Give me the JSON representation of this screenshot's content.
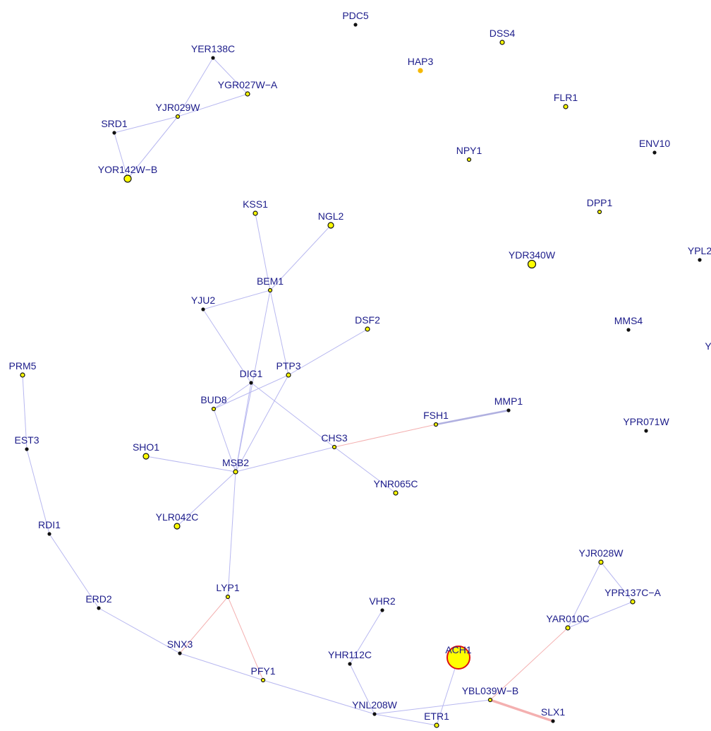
{
  "nodes": [
    {
      "label": "PDC5"
    },
    {
      "label": "DSS4"
    },
    {
      "label": "HAP3"
    },
    {
      "label": "YER138C"
    },
    {
      "label": "YGR027W−A"
    },
    {
      "label": "YJR029W"
    },
    {
      "label": "SRD1"
    },
    {
      "label": "YOR142W−B"
    },
    {
      "label": "FLR1"
    },
    {
      "label": "NPY1"
    },
    {
      "label": "ENV10"
    },
    {
      "label": "DPP1"
    },
    {
      "label": "KSS1"
    },
    {
      "label": "NGL2"
    },
    {
      "label": "YDR340W"
    },
    {
      "label": "YPL2"
    },
    {
      "label": "BEM1"
    },
    {
      "label": "YJU2"
    },
    {
      "label": "MMS4"
    },
    {
      "label": "DSF2"
    },
    {
      "label": "Y"
    },
    {
      "label": "PRM5"
    },
    {
      "label": "DIG1"
    },
    {
      "label": "PTP3"
    },
    {
      "label": "BUD8"
    },
    {
      "label": "MMP1"
    },
    {
      "label": "FSH1"
    },
    {
      "label": "YPR071W"
    },
    {
      "label": "CHS3"
    },
    {
      "label": "EST3"
    },
    {
      "label": "SHO1"
    },
    {
      "label": "MSB2"
    },
    {
      "label": "YNR065C"
    },
    {
      "label": "YLR042C"
    },
    {
      "label": "RDI1"
    },
    {
      "label": "YJR028W"
    },
    {
      "label": "LYP1"
    },
    {
      "label": "YPR137C−A"
    },
    {
      "label": "ERD2"
    },
    {
      "label": "VHR2"
    },
    {
      "label": "YAR010C"
    },
    {
      "label": "SNX3"
    },
    {
      "label": "ACH1"
    },
    {
      "label": "YHR112C"
    },
    {
      "label": "PFY1"
    },
    {
      "label": "YBL039W−B"
    },
    {
      "label": "YNL208W"
    },
    {
      "label": "SLX1"
    },
    {
      "label": "ETR1"
    }
  ]
}
